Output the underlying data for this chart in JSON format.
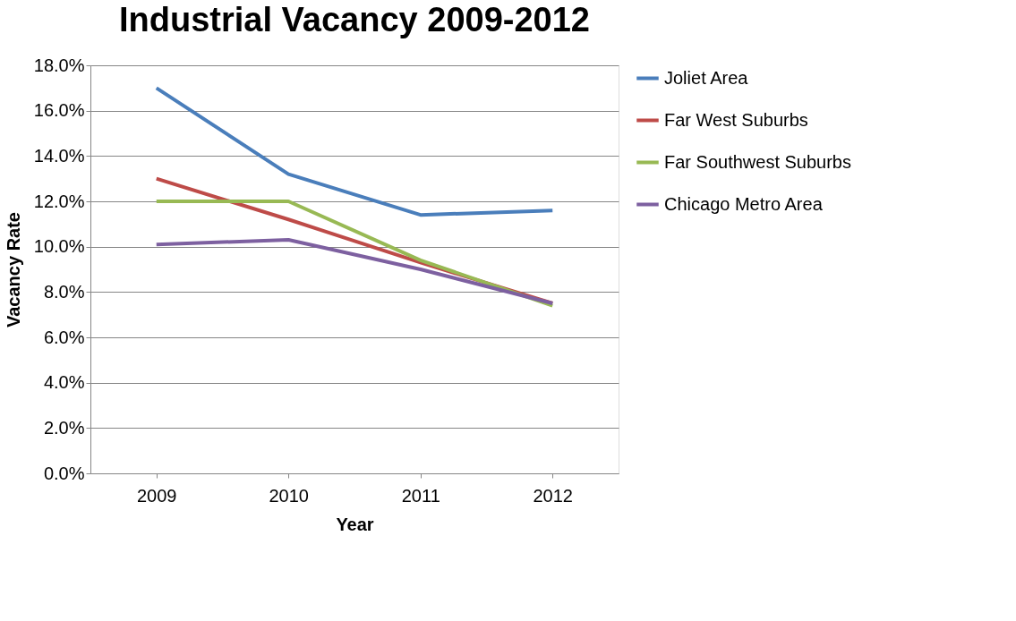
{
  "chart_data": {
    "type": "line",
    "title": "Industrial Vacancy 2009-2012",
    "xlabel": "Year",
    "ylabel": "Vacancy Rate",
    "categories": [
      "2009",
      "2010",
      "2011",
      "2012"
    ],
    "series": [
      {
        "name": "Joliet Area",
        "color": "#4a7ebb",
        "values": [
          17.0,
          13.2,
          11.4,
          11.6
        ]
      },
      {
        "name": "Far West Suburbs",
        "color": "#be4b48",
        "values": [
          13.0,
          11.2,
          9.3,
          7.5
        ]
      },
      {
        "name": "Far Southwest  Suburbs",
        "color": "#98b954",
        "values": [
          12.0,
          12.0,
          9.4,
          7.4
        ]
      },
      {
        "name": "Chicago Metro Area",
        "color": "#7d60a0",
        "values": [
          10.1,
          10.3,
          9.0,
          7.5
        ]
      }
    ],
    "ylim": [
      0,
      18
    ],
    "yticks": [
      {
        "value": 0,
        "label": "0.0%"
      },
      {
        "value": 2,
        "label": "2.0%"
      },
      {
        "value": 4,
        "label": "4.0%"
      },
      {
        "value": 6,
        "label": "6.0%"
      },
      {
        "value": 8,
        "label": "8.0%"
      },
      {
        "value": 10,
        "label": "10.0%"
      },
      {
        "value": 12,
        "label": "12.0%"
      },
      {
        "value": 14,
        "label": "14.0%"
      },
      {
        "value": 16,
        "label": "16.0%"
      },
      {
        "value": 18,
        "label": "18.0%"
      }
    ],
    "grid": "y",
    "legend": "right",
    "marker": "none",
    "line_style": "solid"
  }
}
